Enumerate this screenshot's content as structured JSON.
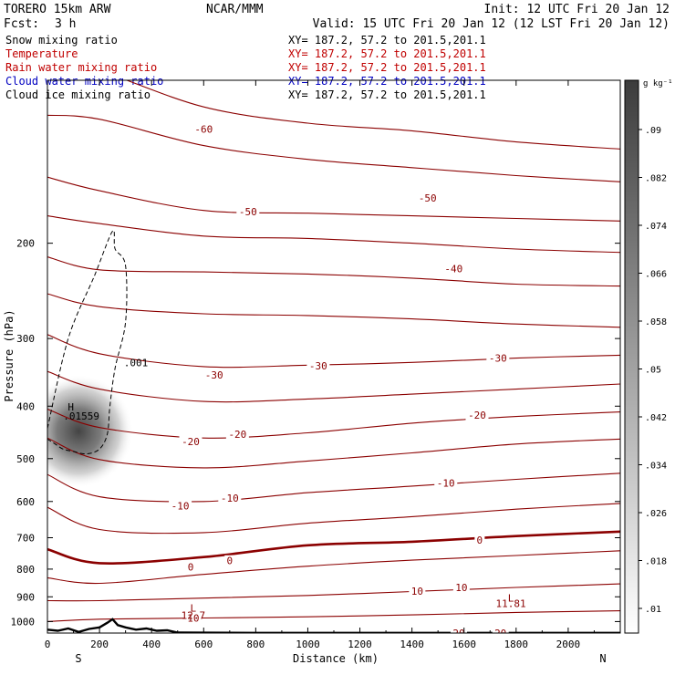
{
  "header": {
    "model": "TORERO  15km ARW",
    "org": "NCAR/MMM",
    "init": "Init: 12 UTC Fri 20 Jan 12",
    "fcst_label": "Fcst:",
    "fcst_value": "3 h",
    "valid": "Valid: 15 UTC Fri 20 Jan 12 (12 LST Fri 20 Jan 12)"
  },
  "fields": [
    {
      "name": "Snow mixing ratio",
      "xy": "",
      "color": "#000000"
    },
    {
      "name": "Temperature",
      "xy": "XY= 187.2, 57.2 to 201.5,201.1",
      "color": "#c00000"
    },
    {
      "name": "Rain water mixing ratio",
      "xy": "XY= 187.2, 57.2 to 201.5,201.1",
      "color": "#c00000"
    },
    {
      "name": "Cloud water mixing ratio",
      "xy": "XY= 187.2, 57.2 to 201.5,201.1",
      "color": "#0000c0"
    },
    {
      "name": "Cloud ice mixing ratio",
      "xy": "XY= 187.2, 57.2 to 201.5,201.1",
      "color": "#000000"
    }
  ],
  "header_xy_line0": "XY= 187.2, 57.2 to 201.5,201.1",
  "chart_data": {
    "type": "contour",
    "xlabel": "Distance (km)",
    "ylabel": "Pressure (hPa)",
    "x_ticks": [
      0,
      200,
      400,
      600,
      800,
      1000,
      1200,
      1400,
      1600,
      1800,
      2000
    ],
    "x_tick_labels": [
      "0",
      "200",
      "400",
      "600",
      "800",
      "1000",
      "1200",
      "1400",
      "1600",
      "1800",
      "2000"
    ],
    "y_ticks": [
      200,
      300,
      400,
      500,
      600,
      700,
      800,
      900,
      1000
    ],
    "y_tick_labels": [
      "200",
      "300",
      "400",
      "500",
      "600",
      "700",
      "800",
      "900",
      "1000"
    ],
    "xlim": [
      0,
      2200
    ],
    "ylim": [
      100,
      1050
    ],
    "y_scale": "log",
    "x_end_labels": {
      "left": "S",
      "right": "N"
    },
    "colorbar": {
      "unit": "g kg⁻¹",
      "levels": [
        ".01",
        ".018",
        ".026",
        ".034",
        ".042",
        ".05",
        ".058",
        ".066",
        ".074",
        ".082",
        ".09"
      ]
    },
    "temperature_labels": [
      {
        "text": "-60",
        "x": 140,
        "p": 90
      },
      {
        "text": "-60",
        "x": 600,
        "p": 123
      },
      {
        "text": "-50",
        "x": 770,
        "p": 175
      },
      {
        "text": "-50",
        "x": 1460,
        "p": 165
      },
      {
        "text": "-40",
        "x": 1560,
        "p": 223
      },
      {
        "text": "-30",
        "x": 640,
        "p": 350
      },
      {
        "text": "-30",
        "x": 1040,
        "p": 337
      },
      {
        "text": "-30",
        "x": 1730,
        "p": 326
      },
      {
        "text": "-20",
        "x": 550,
        "p": 465
      },
      {
        "text": "-20",
        "x": 730,
        "p": 451
      },
      {
        "text": "-20",
        "x": 1650,
        "p": 415
      },
      {
        "text": "-10",
        "x": 510,
        "p": 611
      },
      {
        "text": "-10",
        "x": 700,
        "p": 591
      },
      {
        "text": "-10",
        "x": 1530,
        "p": 555
      },
      {
        "text": "0",
        "x": 550,
        "p": 793
      },
      {
        "text": "0",
        "x": 700,
        "p": 772
      },
      {
        "text": "0",
        "x": 1660,
        "p": 707
      },
      {
        "text": "10",
        "x": 560,
        "p": 984
      },
      {
        "text": "10",
        "x": 1420,
        "p": 879
      },
      {
        "text": "10",
        "x": 1590,
        "p": 864
      },
      {
        "text": "20",
        "x": 1580,
        "p": 1051
      },
      {
        "text": "20",
        "x": 1740,
        "p": 1051
      }
    ],
    "annotations": [
      {
        "text": ".001",
        "x": 340,
        "p": 332
      },
      {
        "text": "H",
        "x": 90,
        "p": 401
      },
      {
        "text": ".01559",
        "x": 130,
        "p": 417
      },
      {
        "text": "L",
        "x": 560,
        "p": 943
      },
      {
        "text": "12.7",
        "x": 560,
        "p": 974
      },
      {
        "text": "L",
        "x": 1780,
        "p": 905
      },
      {
        "text": "11.81",
        "x": 1780,
        "p": 925
      }
    ],
    "snow_max": {
      "x": 120,
      "p": 445,
      "value": 0.01559
    },
    "temperature_contours": [
      {
        "level": -60,
        "x": [
          0,
          200,
          600,
          1000,
          1400,
          1800,
          2200
        ],
        "p": [
          92,
          96,
          112,
          120,
          124,
          130,
          134
        ]
      },
      {
        "level": -55,
        "x": [
          0,
          200,
          600,
          1000,
          1400,
          1800,
          2200
        ],
        "p": [
          116,
          118,
          132,
          140,
          145,
          150,
          154
        ]
      },
      {
        "level": -50,
        "x": [
          0,
          200,
          600,
          1000,
          1400,
          1800,
          2200
        ],
        "p": [
          151,
          160,
          174,
          176,
          178,
          180,
          182
        ]
      },
      {
        "level": -45,
        "x": [
          0,
          200,
          600,
          1000,
          1400,
          1800,
          2200
        ],
        "p": [
          178,
          184,
          194,
          196,
          200,
          205,
          208
        ]
      },
      {
        "level": -40,
        "x": [
          0,
          200,
          600,
          1000,
          1400,
          1800,
          2200
        ],
        "p": [
          212,
          224,
          226,
          228,
          232,
          238,
          240
        ]
      },
      {
        "level": -35,
        "x": [
          0,
          200,
          600,
          1000,
          1400,
          1800,
          2200
        ],
        "p": [
          248,
          262,
          270,
          272,
          276,
          282,
          286
        ]
      },
      {
        "level": -30,
        "x": [
          0,
          200,
          600,
          1000,
          1400,
          1800,
          2200
        ],
        "p": [
          295,
          320,
          338,
          336,
          332,
          326,
          322
        ]
      },
      {
        "level": -25,
        "x": [
          0,
          200,
          600,
          1000,
          1400,
          1800,
          2200
        ],
        "p": [
          345,
          372,
          392,
          388,
          380,
          372,
          364
        ]
      },
      {
        "level": -20,
        "x": [
          0,
          200,
          600,
          1000,
          1400,
          1800,
          2200
        ],
        "p": [
          405,
          438,
          458,
          448,
          430,
          418,
          410
        ]
      },
      {
        "level": -15,
        "x": [
          0,
          200,
          600,
          1000,
          1400,
          1800,
          2200
        ],
        "p": [
          458,
          502,
          520,
          505,
          488,
          470,
          460
        ]
      },
      {
        "level": -10,
        "x": [
          0,
          200,
          600,
          1000,
          1400,
          1800,
          2200
        ],
        "p": [
          535,
          588,
          600,
          578,
          562,
          546,
          532
        ]
      },
      {
        "level": -5,
        "x": [
          0,
          200,
          600,
          1000,
          1400,
          1800,
          2200
        ],
        "p": [
          615,
          676,
          685,
          658,
          640,
          620,
          605
        ]
      },
      {
        "level": 0,
        "x": [
          0,
          200,
          600,
          1000,
          1400,
          1800,
          2200
        ],
        "p": [
          735,
          780,
          760,
          723,
          712,
          695,
          682
        ]
      },
      {
        "level": 5,
        "x": [
          0,
          200,
          600,
          1000,
          1400,
          1800,
          2200
        ],
        "p": [
          830,
          850,
          818,
          790,
          770,
          755,
          740
        ]
      },
      {
        "level": 10,
        "x": [
          0,
          200,
          600,
          1000,
          1400,
          1800,
          2200
        ],
        "p": [
          915,
          915,
          905,
          895,
          880,
          865,
          852
        ]
      },
      {
        "level": 15,
        "x": [
          0,
          200,
          600,
          1000,
          1400,
          1800,
          2200
        ],
        "p": [
          1000,
          990,
          985,
          980,
          972,
          962,
          955
        ]
      },
      {
        "level": 20,
        "x": [
          0,
          200,
          600,
          1000,
          1400,
          1800,
          2200
        ],
        "p": [
          1050,
          1050,
          1050,
          1050,
          1050,
          1050,
          1048
        ]
      }
    ],
    "snow_contour_001": {
      "x": [
        0,
        80,
        180,
        250,
        260,
        300,
        300,
        260,
        240,
        230,
        200,
        150,
        100,
        60,
        30,
        0
      ],
      "p": [
        440,
        300,
        230,
        190,
        205,
        220,
        280,
        340,
        400,
        450,
        480,
        490,
        485,
        480,
        470,
        460
      ]
    },
    "terrain": {
      "x": [
        0,
        40,
        80,
        120,
        160,
        200,
        230,
        250,
        270,
        300,
        340,
        380,
        420,
        460,
        500,
        800,
        1200,
        1600,
        2000,
        2200
      ],
      "p": [
        1035,
        1040,
        1030,
        1045,
        1032,
        1025,
        1005,
        990,
        1015,
        1025,
        1035,
        1030,
        1040,
        1038,
        1048,
        1049,
        1049,
        1049,
        1049,
        1049
      ]
    }
  }
}
